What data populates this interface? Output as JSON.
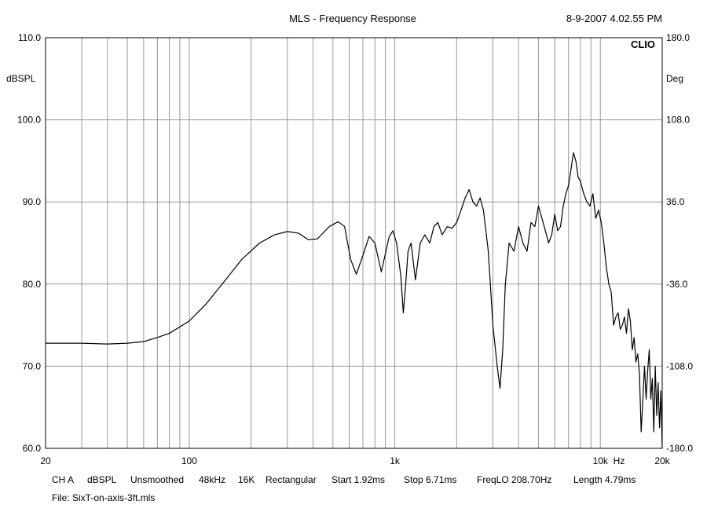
{
  "chart_data": {
    "type": "line",
    "title": "MLS - Frequency Response",
    "timestamp": "8-9-2007 4.02.55 PM",
    "brand": "CLIO",
    "x_scale": "log",
    "xlim": [
      20,
      20000
    ],
    "x_ticks": [
      {
        "value": 20,
        "label": "20"
      },
      {
        "value": 100,
        "label": "100"
      },
      {
        "value": 1000,
        "label": "1k"
      },
      {
        "value": 10000,
        "label": "10k"
      },
      {
        "value": 20000,
        "label": "20k"
      }
    ],
    "x_unit": "Hz",
    "ylabel_left": "dBSPL",
    "ylabel_right": "Deg",
    "ylim": [
      60,
      110
    ],
    "y_ticks_left": [
      "110.0",
      "100.0",
      "90.0",
      "80.0",
      "70.0",
      "60.0"
    ],
    "y_ticks_right": [
      "180.0",
      "108.0",
      "36.0",
      "-36.0",
      "-108.0",
      "-180.0"
    ],
    "grid": true,
    "series": [
      {
        "color": "#000000",
        "x": [
          20,
          30,
          40,
          50,
          60,
          70,
          80,
          100,
          120,
          150,
          180,
          220,
          260,
          300,
          340,
          380,
          420,
          480,
          530,
          570,
          610,
          650,
          700,
          750,
          800,
          860,
          940,
          980,
          1020,
          1070,
          1100,
          1130,
          1160,
          1200,
          1260,
          1330,
          1400,
          1480,
          1550,
          1620,
          1700,
          1800,
          1900,
          2000,
          2100,
          2200,
          2300,
          2400,
          2500,
          2600,
          2700,
          2850,
          3000,
          3150,
          3250,
          3350,
          3450,
          3600,
          3800,
          4000,
          4200,
          4400,
          4600,
          4800,
          5000,
          5200,
          5400,
          5600,
          5800,
          6000,
          6200,
          6400,
          6600,
          6800,
          7000,
          7200,
          7400,
          7600,
          7800,
          8000,
          8300,
          8600,
          8900,
          9200,
          9500,
          9800,
          10100,
          10400,
          10700,
          11000,
          11300,
          11600,
          11900,
          12200,
          12500,
          12800,
          13100,
          13400,
          13700,
          14000,
          14300,
          14600,
          14900,
          15200,
          15500,
          15800,
          16100,
          16400,
          16700,
          17000,
          17300,
          17600,
          17900,
          18200,
          18500,
          18800,
          19100,
          19400,
          19700,
          20000
        ],
        "y": [
          72.8,
          72.8,
          72.7,
          72.8,
          73.0,
          73.5,
          74.0,
          75.5,
          77.5,
          80.5,
          83.0,
          85.0,
          86.0,
          86.4,
          86.2,
          85.4,
          85.5,
          87.0,
          87.6,
          87.0,
          83.0,
          81.2,
          83.5,
          85.8,
          85.0,
          81.5,
          85.8,
          86.5,
          85.0,
          81.0,
          76.5,
          80.0,
          84.0,
          85.0,
          80.5,
          85.0,
          86.0,
          85.0,
          87.0,
          87.5,
          86.0,
          87.0,
          86.8,
          87.5,
          89.0,
          90.5,
          91.5,
          90.0,
          89.5,
          90.5,
          89.0,
          84.0,
          75.0,
          70.0,
          67.3,
          72.0,
          80.0,
          85.0,
          84.0,
          87.0,
          85.0,
          84.0,
          87.5,
          87.0,
          89.5,
          88.0,
          86.5,
          85.0,
          86.0,
          88.5,
          86.5,
          87.0,
          89.5,
          91.0,
          92.0,
          94.0,
          96.0,
          95.0,
          93.0,
          92.5,
          91.0,
          90.0,
          89.5,
          91.0,
          88.0,
          89.0,
          87.5,
          85.0,
          82.0,
          80.0,
          79.0,
          75.0,
          76.0,
          76.5,
          74.5,
          75.0,
          76.0,
          74.0,
          77.0,
          75.5,
          72.0,
          73.5,
          70.5,
          71.5,
          69.0,
          62.0,
          66.0,
          70.0,
          66.0,
          69.5,
          72.0,
          66.0,
          68.5,
          62.0,
          70.0,
          64.0,
          68.0,
          62.5,
          67.0,
          60.0
        ]
      }
    ]
  },
  "footer": {
    "channel": "CH A",
    "unit": "dBSPL",
    "smoothing": "Unsmoothed",
    "rate": "48kHz",
    "size": "16K",
    "window": "Rectangular",
    "start": "Start 1.92ms",
    "stop": "Stop 6.71ms",
    "freqlo": "FreqLO 208.70Hz",
    "length": "Length 4.79ms",
    "file": "File: SixT-on-axis-3ft.mls"
  }
}
